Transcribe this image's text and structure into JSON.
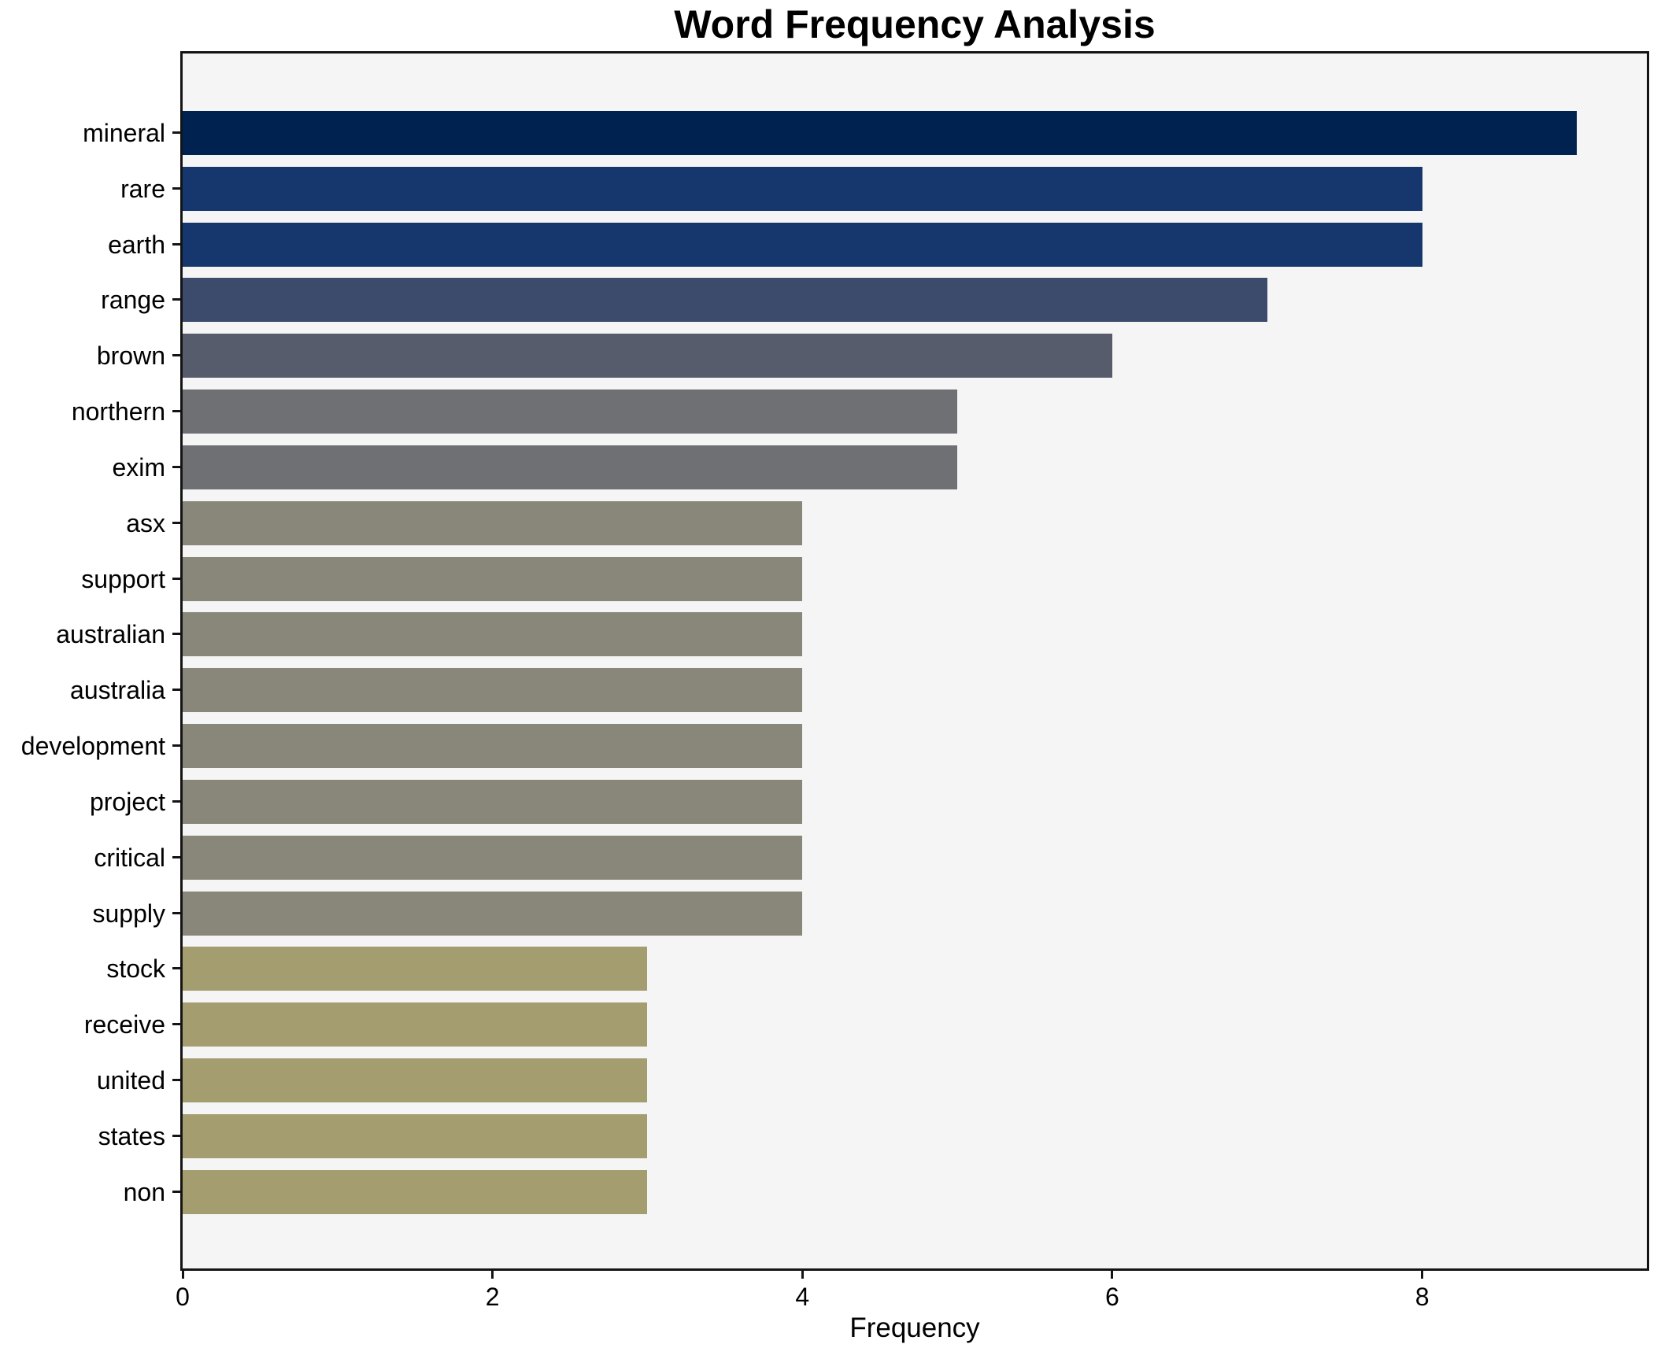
{
  "figure": {
    "background": "#ffffff"
  },
  "chart_data": {
    "type": "bar",
    "orientation": "horizontal",
    "title": "Word Frequency Analysis",
    "xlabel": "Frequency",
    "ylabel": "",
    "categories": [
      "mineral",
      "rare",
      "earth",
      "range",
      "brown",
      "northern",
      "exim",
      "asx",
      "support",
      "australian",
      "australia",
      "development",
      "project",
      "critical",
      "supply",
      "stock",
      "receive",
      "united",
      "states",
      "non"
    ],
    "values": [
      9,
      8,
      8,
      7,
      6,
      5,
      5,
      4,
      4,
      4,
      4,
      4,
      4,
      4,
      4,
      3,
      3,
      3,
      3,
      3
    ],
    "bar_colors": [
      "#002250",
      "#15376e",
      "#15376e",
      "#3c4a6c",
      "#565c6b",
      "#6e7074",
      "#6e7074",
      "#89877a",
      "#89877a",
      "#89877a",
      "#89877a",
      "#89877a",
      "#89877a",
      "#89877a",
      "#89877a",
      "#a49d70",
      "#a49d70",
      "#a49d70",
      "#a49d70",
      "#a49d70"
    ],
    "x_ticks": [
      0,
      2,
      4,
      6,
      8
    ],
    "xlim": [
      0,
      9.45
    ],
    "grid": false,
    "legend": null,
    "plot_background": "#f5f5f6",
    "spine_color": "#141414",
    "text_color": "#000000"
  }
}
